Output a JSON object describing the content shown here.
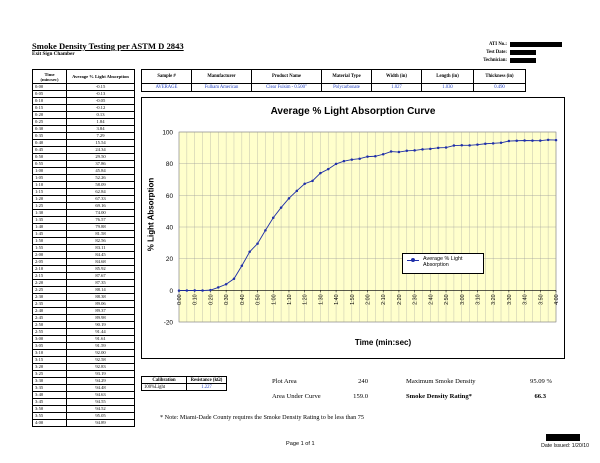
{
  "header": {
    "title": "Smoke Density Testing per ASTM D 2843",
    "subtitle": "Exit Sign Chamber",
    "meta": [
      {
        "label": "ATI No.:"
      },
      {
        "label": "Test Date:"
      },
      {
        "label": "Technician:"
      }
    ]
  },
  "time_table": {
    "col_time": "Time (min:sec)",
    "col_avg": "Average % Light Absorption",
    "rows": [
      [
        "0:00",
        "-0.15"
      ],
      [
        "0:05",
        "-0.13"
      ],
      [
        "0:10",
        "-0.05"
      ],
      [
        "0:15",
        "-0.12"
      ],
      [
        "0:20",
        "0.13"
      ],
      [
        "0:25",
        "1.84"
      ],
      [
        "0:30",
        "3.84"
      ],
      [
        "0:35",
        "7.29"
      ],
      [
        "0:40",
        "15.54"
      ],
      [
        "0:45",
        "24.34"
      ],
      [
        "0:50",
        "29.50"
      ],
      [
        "0:55",
        "37.86"
      ],
      [
        "1:00",
        "45.84"
      ],
      [
        "1:05",
        "52.26"
      ],
      [
        "1:10",
        "58.09"
      ],
      [
        "1:15",
        "62.84"
      ],
      [
        "1:20",
        "67.33"
      ],
      [
        "1:25",
        "69.16"
      ],
      [
        "1:30",
        "74.00"
      ],
      [
        "1:35",
        "76.57"
      ],
      [
        "1:40",
        "79.88"
      ],
      [
        "1:45",
        "81.58"
      ],
      [
        "1:50",
        "82.56"
      ],
      [
        "1:55",
        "83.11"
      ],
      [
        "2:00",
        "84.45"
      ],
      [
        "2:05",
        "84.68"
      ],
      [
        "2:10",
        "85.92"
      ],
      [
        "2:15",
        "87.67"
      ],
      [
        "2:20",
        "87.35"
      ],
      [
        "2:25",
        "88.14"
      ],
      [
        "2:30",
        "88.38"
      ],
      [
        "2:35",
        "89.06"
      ],
      [
        "2:40",
        "89.37"
      ],
      [
        "2:45",
        "89.98"
      ],
      [
        "2:50",
        "90.19"
      ],
      [
        "2:55",
        "91.44"
      ],
      [
        "3:00",
        "91.61"
      ],
      [
        "3:05",
        "91.59"
      ],
      [
        "3:10",
        "92.00"
      ],
      [
        "3:15",
        "92.58"
      ],
      [
        "3:20",
        "92.83"
      ],
      [
        "3:25",
        "93.19"
      ],
      [
        "3:30",
        "94.29"
      ],
      [
        "3:35",
        "94.48"
      ],
      [
        "3:40",
        "94.63"
      ],
      [
        "3:45",
        "94.55"
      ],
      [
        "3:50",
        "94.52"
      ],
      [
        "3:55",
        "95.05"
      ],
      [
        "4:00",
        "94.89"
      ]
    ]
  },
  "sample": {
    "headers": [
      "Sample #",
      "Manufacturer",
      "Product Name",
      "Material Type",
      "Width (in)",
      "Length (in)",
      "Thickness (in)"
    ],
    "values": [
      "AVERAGE",
      "Fulham American",
      "Clear Fulsim - 0.500\"",
      "Polycarbonate",
      "1.027",
      "1.030",
      "0.490"
    ]
  },
  "chart_data": {
    "type": "line",
    "title": "Average % Light Absorption Curve",
    "xlabel": "Time (min:sec)",
    "ylabel": "% Light Absorption",
    "ylim": [
      -20,
      100
    ],
    "yticks": [
      -20,
      0,
      20,
      40,
      60,
      80,
      100
    ],
    "grid": true,
    "legend_position": "right",
    "series": [
      {
        "name": "Average % Light Absorption",
        "color": "#1f2fa8",
        "values": [
          -0.15,
          -0.13,
          -0.05,
          -0.12,
          0.13,
          1.84,
          3.84,
          7.29,
          15.54,
          24.34,
          29.5,
          37.86,
          45.84,
          52.26,
          58.09,
          62.84,
          67.33,
          69.16,
          74.0,
          76.57,
          79.88,
          81.58,
          82.56,
          83.11,
          84.45,
          84.68,
          85.92,
          87.67,
          87.35,
          88.14,
          88.38,
          89.06,
          89.37,
          89.98,
          90.19,
          91.44,
          91.61,
          91.59,
          92.0,
          92.58,
          92.83,
          93.19,
          94.29,
          94.48,
          94.63,
          94.55,
          94.52,
          95.05,
          94.89
        ]
      }
    ],
    "x": [
      "0:00",
      "0:05",
      "0:10",
      "0:15",
      "0:20",
      "0:25",
      "0:30",
      "0:35",
      "0:40",
      "0:45",
      "0:50",
      "0:55",
      "1:00",
      "1:05",
      "1:10",
      "1:15",
      "1:20",
      "1:25",
      "1:30",
      "1:35",
      "1:40",
      "1:45",
      "1:50",
      "1:55",
      "2:00",
      "2:05",
      "2:10",
      "2:15",
      "2:20",
      "2:25",
      "2:30",
      "2:35",
      "2:40",
      "2:45",
      "2:50",
      "2:55",
      "3:00",
      "3:05",
      "3:10",
      "3:15",
      "3:20",
      "3:25",
      "3:30",
      "3:35",
      "3:40",
      "3:45",
      "3:50",
      "3:55",
      "4:00"
    ],
    "xtick_labels": [
      "0:00",
      "0:10",
      "0:20",
      "0:30",
      "0:40",
      "0:50",
      "1:00",
      "1:10",
      "1:20",
      "1:30",
      "1:40",
      "1:50",
      "2:00",
      "2:10",
      "2:20",
      "2:30",
      "2:40",
      "2:50",
      "3:00",
      "3:10",
      "3:20",
      "3:30",
      "3:40",
      "3:50",
      "4:00"
    ],
    "plot_bg": "#ffffcc"
  },
  "calibration": {
    "header_left": "Calibration",
    "header_right": "Resistance (kΩ)",
    "row_left": "100%Light",
    "row_right": "1.227"
  },
  "results": {
    "plot_area_label": "Plot Area",
    "plot_area_value": "240",
    "area_under_label": "Area Under Curve",
    "area_under_value": "159.0",
    "max_density_label": "Maximum Smoke Density",
    "max_density_value": "95.09 %",
    "rating_label": "Smoke Density Rating*",
    "rating_value": "66.3"
  },
  "note": "* Note:  Miami-Dade County requires the Smoke Density Rating to be less than 75",
  "footer": {
    "page": "Page 1 of 1",
    "date_issued": "Date Issued: 1/20/10"
  }
}
